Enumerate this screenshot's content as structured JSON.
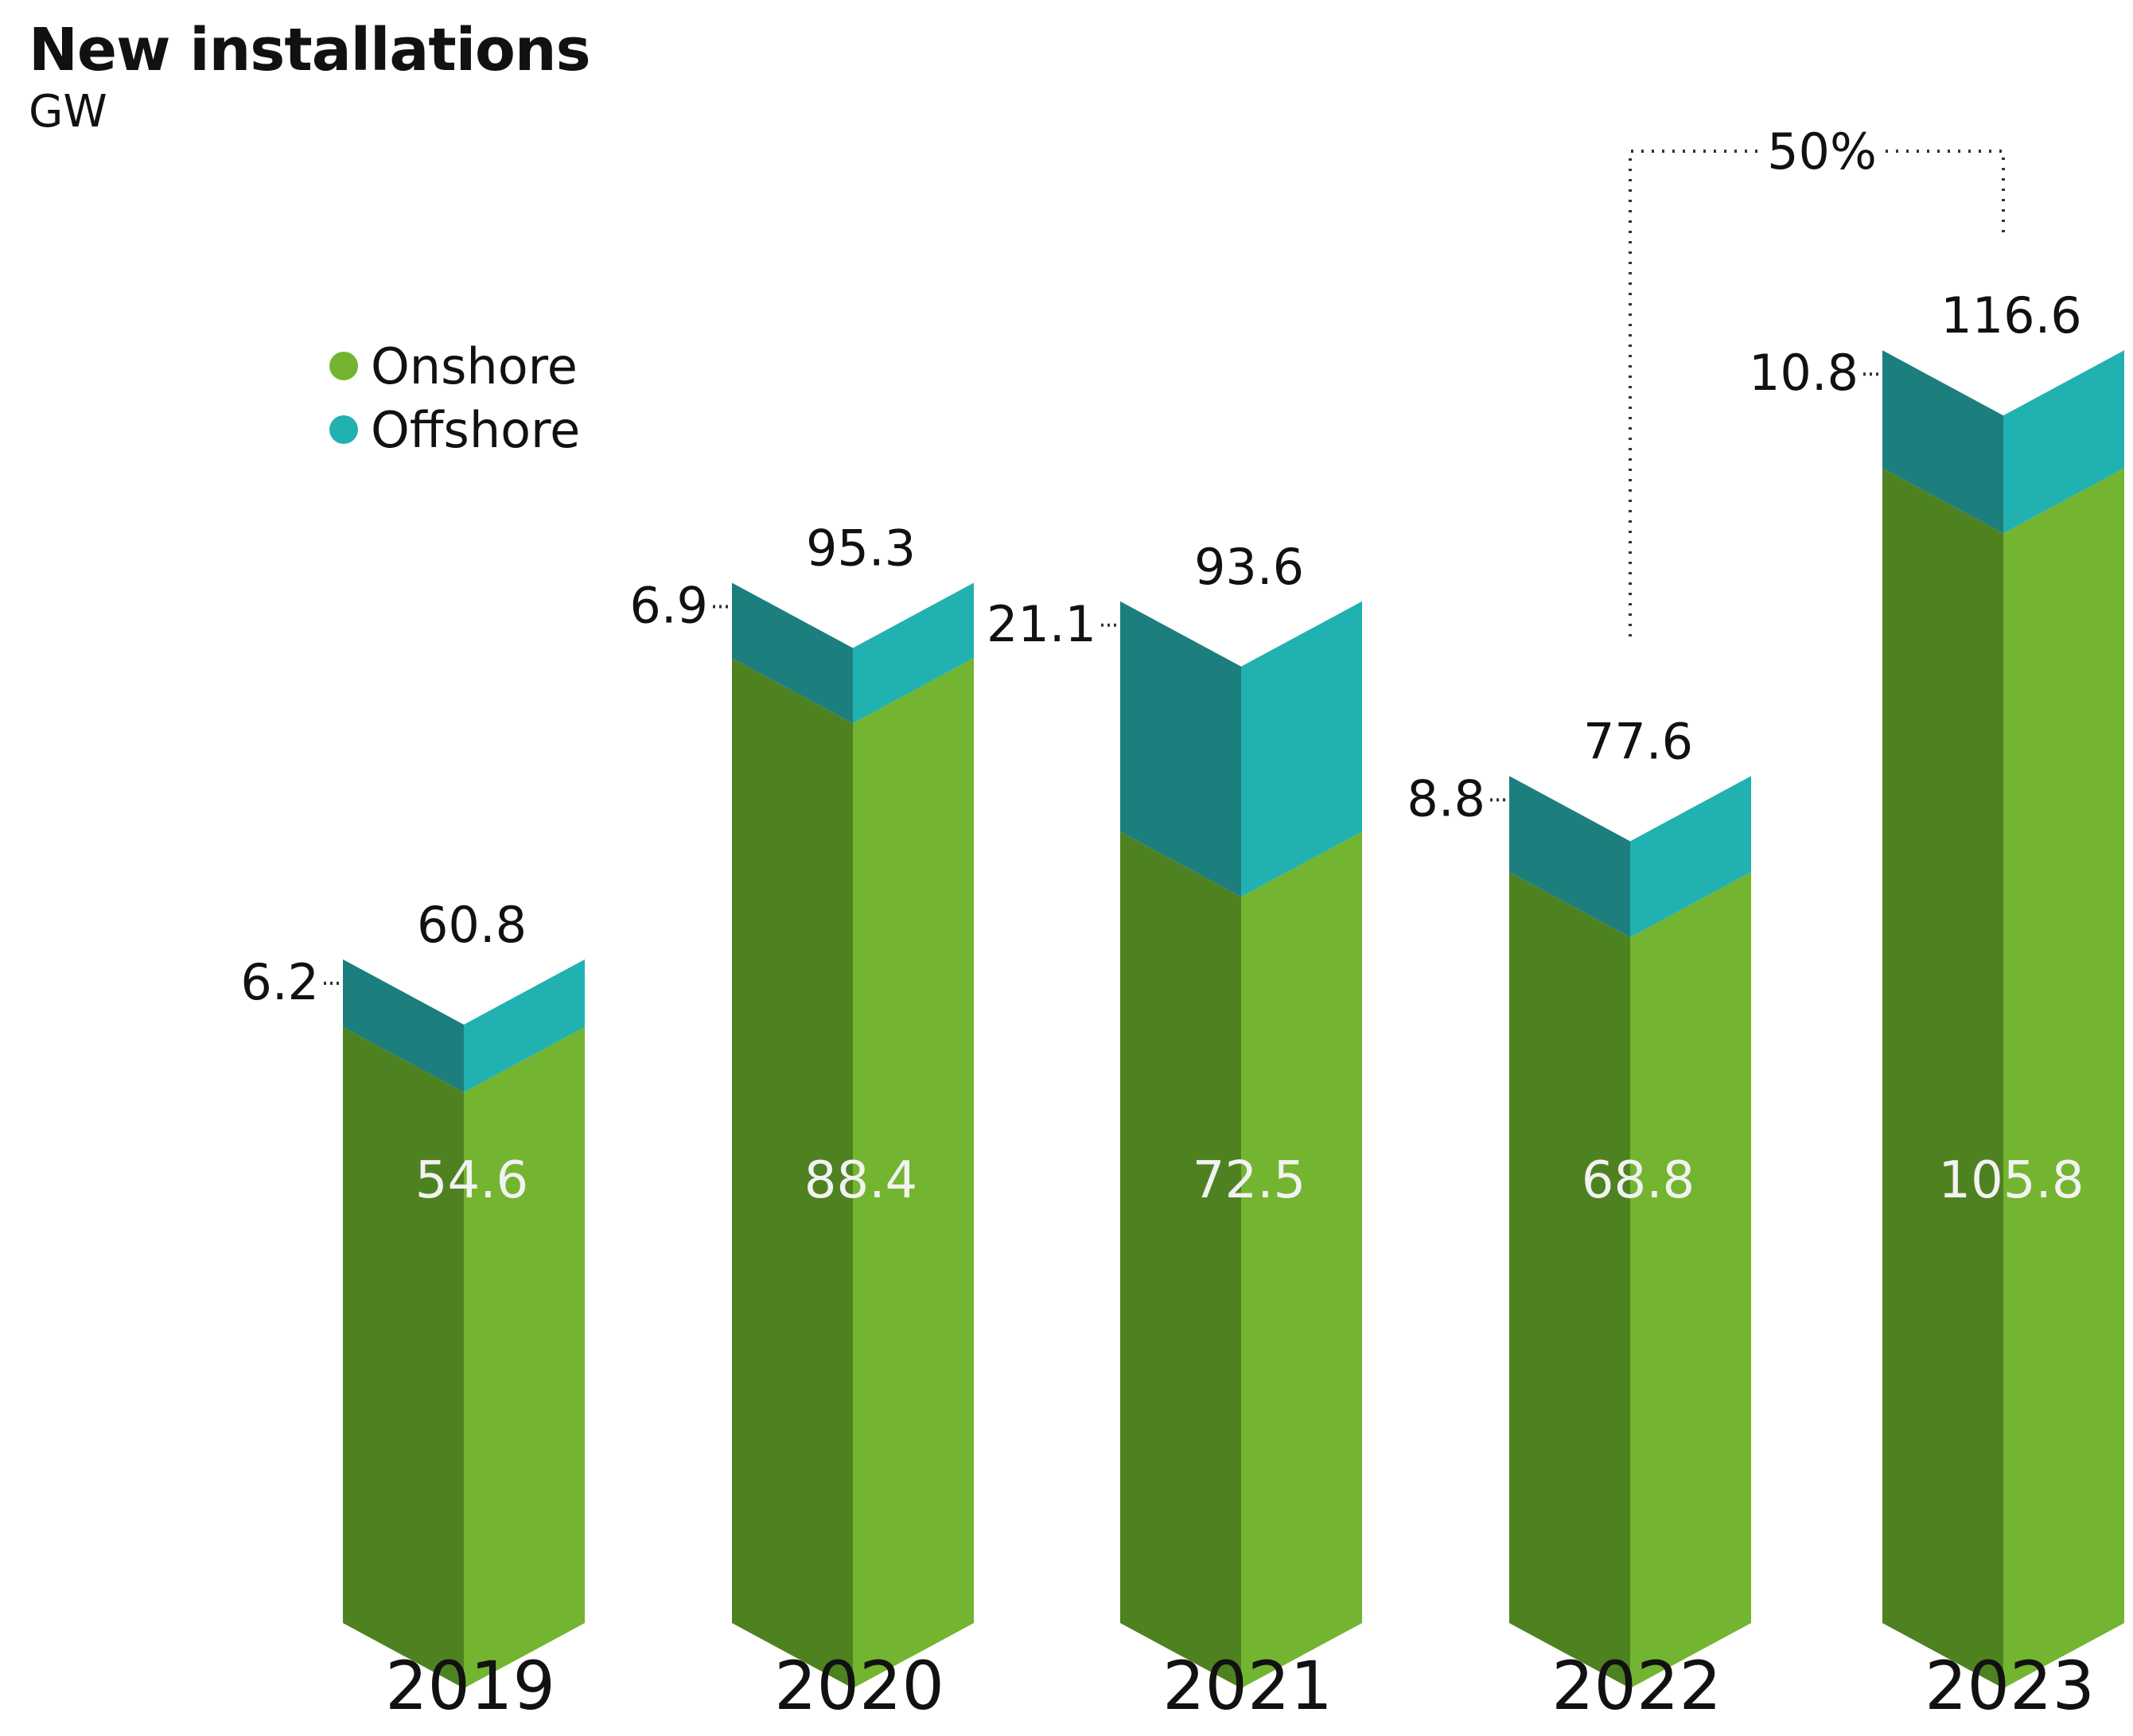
{
  "chart_data": {
    "type": "bar",
    "stacked": true,
    "title": "New installations",
    "unit": "GW",
    "categories": [
      "2019",
      "2020",
      "2021",
      "2022",
      "2023"
    ],
    "series": [
      {
        "name": "Onshore",
        "values": [
          54.6,
          88.4,
          72.5,
          68.8,
          105.8
        ]
      },
      {
        "name": "Offshore",
        "values": [
          6.2,
          6.9,
          21.1,
          8.8,
          10.8
        ]
      }
    ],
    "totals": [
      "60.8",
      "95.3",
      "93.6",
      "77.6",
      "116.6"
    ],
    "onshore_labels": [
      "54.6",
      "88.4",
      "72.5",
      "68.8",
      "105.8"
    ],
    "offshore_labels": [
      "6.2",
      "6.9",
      "21.1",
      "8.8",
      "10.8"
    ],
    "growth_annotation": {
      "label": "50%",
      "from": "2022",
      "to": "2023"
    },
    "legend_position": "upper-left",
    "grid": false
  },
  "colors": {
    "onshore_light": "#73B530",
    "onshore_dark": "#4E8220",
    "offshore_light": "#22B1B1",
    "offshore_dark": "#1D7E7E",
    "label_white": "#f2f2f2"
  }
}
